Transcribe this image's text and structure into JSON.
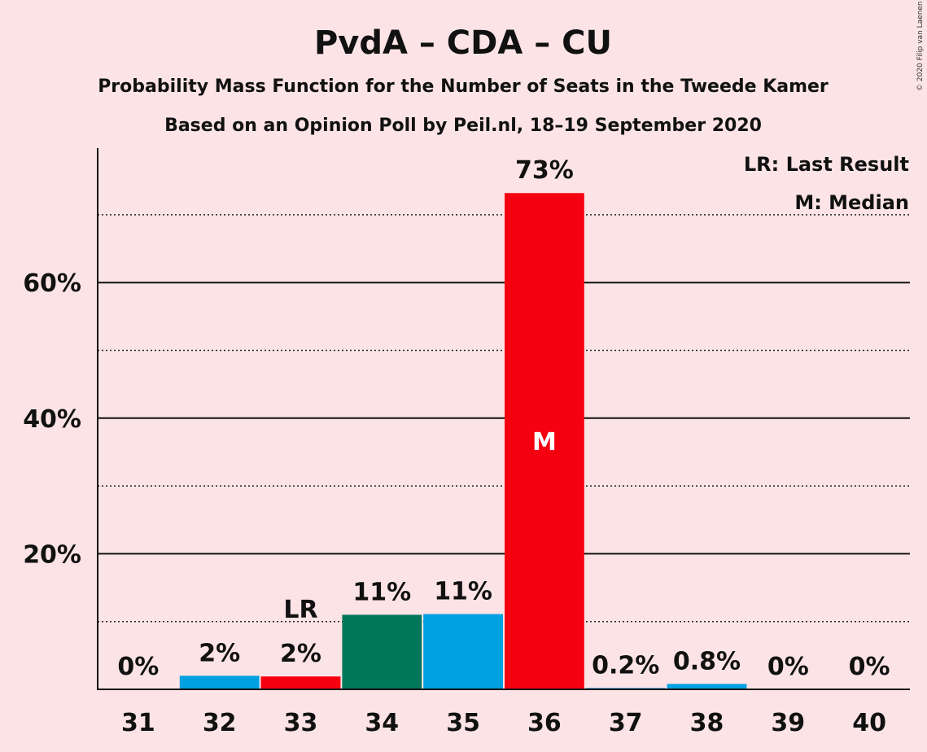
{
  "title": "PvdA – CDA – CU",
  "subtitle1": "Probability Mass Function for the Number of Seats in the Tweede Kamer",
  "subtitle2": "Based on an Opinion Poll by Peil.nl, 18–19 September 2020",
  "copyright": "© 2020 Filip van Laenen",
  "legend": {
    "last_result": "LR: Last Result",
    "median": "M: Median"
  },
  "colors": {
    "background": "#FCE4E6",
    "red": "#F40011",
    "blue": "#00A0E1",
    "green": "#00775B"
  },
  "chart_data": {
    "type": "bar",
    "categories": [
      "31",
      "32",
      "33",
      "34",
      "35",
      "36",
      "37",
      "38",
      "39",
      "40"
    ],
    "values": [
      0,
      2,
      1.9,
      11,
      11.1,
      73.2,
      0.2,
      0.8,
      0,
      0
    ],
    "value_labels": [
      "0%",
      "2%",
      "2%",
      "11%",
      "11%",
      "73%",
      "0.2%",
      "0.8%",
      "0%",
      "0%"
    ],
    "bar_colors": [
      "#00A0E1",
      "#00A0E1",
      "#F40011",
      "#00775B",
      "#00A0E1",
      "#F40011",
      "#00A0E1",
      "#00A0E1",
      "#00A0E1",
      "#00A0E1"
    ],
    "ylim": [
      0,
      80
    ],
    "yticks": [
      20,
      40,
      60
    ],
    "ytick_labels": [
      "20%",
      "40%",
      "60%"
    ],
    "minor_gridlines": [
      10,
      30,
      50,
      70
    ],
    "last_result_category": "33",
    "last_result_marker": "LR",
    "median_category": "36",
    "median_marker": "M",
    "legend_position": "top-right"
  }
}
